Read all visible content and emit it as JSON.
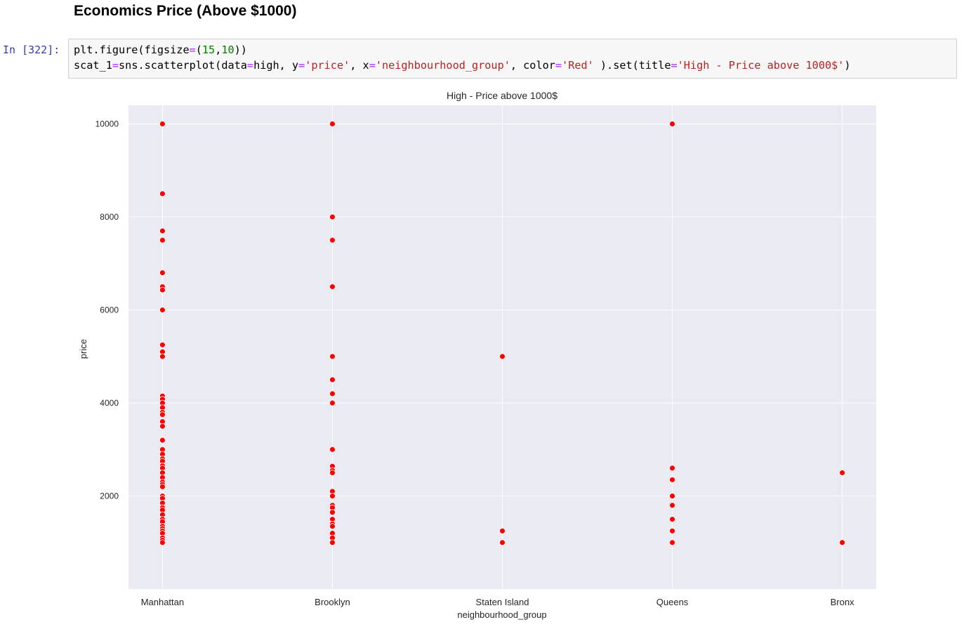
{
  "notebook": {
    "heading": "Economics Price (Above $1000)",
    "prompt": "In [322]:",
    "code": {
      "line1": {
        "a": "plt.figure(figsize",
        "b": "=",
        "c": "(",
        "d": "15",
        "e": ",",
        "f": "10",
        "g": "))"
      },
      "line2": {
        "a": "scat_1",
        "b": "=",
        "c": "sns.scatterplot(data",
        "d": "=",
        "e": "high, y",
        "f": "=",
        "g": "'price'",
        "h": ", x",
        "i": "=",
        "j": "'neighbourhood_group'",
        "k": ", color",
        "l": "=",
        "m": "'Red'",
        "n": " ).set(title",
        "o": "=",
        "p": "'High - Price above 1000$'",
        "q": ")"
      }
    }
  },
  "colors": {
    "plot_bg": "#eaeaf2",
    "grid": "#ffffff",
    "marker": "#ff0000",
    "prompt": "#303f9f",
    "string": "#ba2121",
    "number": "#008000",
    "operator": "#aa22ff"
  },
  "chart_data": {
    "type": "scatter",
    "title": "High - Price above 1000$",
    "xlabel": "neighbourhood_group",
    "ylabel": "price",
    "categories": [
      "Manhattan",
      "Brooklyn",
      "Staten Island",
      "Queens",
      "Bronx"
    ],
    "yticks": [
      2000,
      4000,
      6000,
      8000,
      10000
    ],
    "ylim": [
      0,
      10400
    ],
    "grid": true,
    "legend": "none",
    "points": [
      {
        "x": "Manhattan",
        "y": 10000
      },
      {
        "x": "Manhattan",
        "y": 8500
      },
      {
        "x": "Manhattan",
        "y": 7700
      },
      {
        "x": "Manhattan",
        "y": 7500
      },
      {
        "x": "Manhattan",
        "y": 6800
      },
      {
        "x": "Manhattan",
        "y": 6500
      },
      {
        "x": "Manhattan",
        "y": 6430
      },
      {
        "x": "Manhattan",
        "y": 6000
      },
      {
        "x": "Manhattan",
        "y": 5250
      },
      {
        "x": "Manhattan",
        "y": 5100
      },
      {
        "x": "Manhattan",
        "y": 5000
      },
      {
        "x": "Manhattan",
        "y": 4150
      },
      {
        "x": "Manhattan",
        "y": 4080
      },
      {
        "x": "Manhattan",
        "y": 4000
      },
      {
        "x": "Manhattan",
        "y": 3900
      },
      {
        "x": "Manhattan",
        "y": 3800
      },
      {
        "x": "Manhattan",
        "y": 3750
      },
      {
        "x": "Manhattan",
        "y": 3600
      },
      {
        "x": "Manhattan",
        "y": 3500
      },
      {
        "x": "Manhattan",
        "y": 3200
      },
      {
        "x": "Manhattan",
        "y": 3000
      },
      {
        "x": "Manhattan",
        "y": 2900
      },
      {
        "x": "Manhattan",
        "y": 2800
      },
      {
        "x": "Manhattan",
        "y": 2750
      },
      {
        "x": "Manhattan",
        "y": 2650
      },
      {
        "x": "Manhattan",
        "y": 2600
      },
      {
        "x": "Manhattan",
        "y": 2500
      },
      {
        "x": "Manhattan",
        "y": 2400
      },
      {
        "x": "Manhattan",
        "y": 2300
      },
      {
        "x": "Manhattan",
        "y": 2250
      },
      {
        "x": "Manhattan",
        "y": 2200
      },
      {
        "x": "Manhattan",
        "y": 2000
      },
      {
        "x": "Manhattan",
        "y": 1950
      },
      {
        "x": "Manhattan",
        "y": 1850
      },
      {
        "x": "Manhattan",
        "y": 1750
      },
      {
        "x": "Manhattan",
        "y": 1700
      },
      {
        "x": "Manhattan",
        "y": 1600
      },
      {
        "x": "Manhattan",
        "y": 1500
      },
      {
        "x": "Manhattan",
        "y": 1450
      },
      {
        "x": "Manhattan",
        "y": 1350
      },
      {
        "x": "Manhattan",
        "y": 1300
      },
      {
        "x": "Manhattan",
        "y": 1250
      },
      {
        "x": "Manhattan",
        "y": 1200
      },
      {
        "x": "Manhattan",
        "y": 1100
      },
      {
        "x": "Manhattan",
        "y": 1050
      },
      {
        "x": "Manhattan",
        "y": 1000
      },
      {
        "x": "Brooklyn",
        "y": 10000
      },
      {
        "x": "Brooklyn",
        "y": 8000
      },
      {
        "x": "Brooklyn",
        "y": 7500
      },
      {
        "x": "Brooklyn",
        "y": 6500
      },
      {
        "x": "Brooklyn",
        "y": 5000
      },
      {
        "x": "Brooklyn",
        "y": 4500
      },
      {
        "x": "Brooklyn",
        "y": 4200
      },
      {
        "x": "Brooklyn",
        "y": 4000
      },
      {
        "x": "Brooklyn",
        "y": 3000
      },
      {
        "x": "Brooklyn",
        "y": 2640
      },
      {
        "x": "Brooklyn",
        "y": 2550
      },
      {
        "x": "Brooklyn",
        "y": 2500
      },
      {
        "x": "Brooklyn",
        "y": 2100
      },
      {
        "x": "Brooklyn",
        "y": 2000
      },
      {
        "x": "Brooklyn",
        "y": 1800
      },
      {
        "x": "Brooklyn",
        "y": 1750
      },
      {
        "x": "Brooklyn",
        "y": 1650
      },
      {
        "x": "Brooklyn",
        "y": 1500
      },
      {
        "x": "Brooklyn",
        "y": 1400
      },
      {
        "x": "Brooklyn",
        "y": 1350
      },
      {
        "x": "Brooklyn",
        "y": 1200
      },
      {
        "x": "Brooklyn",
        "y": 1100
      },
      {
        "x": "Brooklyn",
        "y": 1000
      },
      {
        "x": "Staten Island",
        "y": 5000
      },
      {
        "x": "Staten Island",
        "y": 1250
      },
      {
        "x": "Staten Island",
        "y": 1000
      },
      {
        "x": "Queens",
        "y": 10000
      },
      {
        "x": "Queens",
        "y": 2600
      },
      {
        "x": "Queens",
        "y": 2350
      },
      {
        "x": "Queens",
        "y": 2000
      },
      {
        "x": "Queens",
        "y": 1800
      },
      {
        "x": "Queens",
        "y": 1500
      },
      {
        "x": "Queens",
        "y": 1250
      },
      {
        "x": "Queens",
        "y": 1000
      },
      {
        "x": "Bronx",
        "y": 2500
      },
      {
        "x": "Bronx",
        "y": 1000
      }
    ]
  }
}
